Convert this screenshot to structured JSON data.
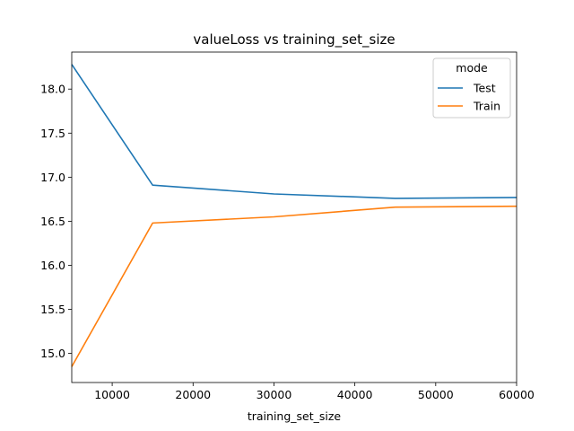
{
  "chart_data": {
    "type": "line",
    "title": "valueLoss vs training_set_size",
    "xlabel": "training_set_size",
    "ylabel": "",
    "xlim": [
      5000,
      60000
    ],
    "ylim": [
      14.67,
      18.42
    ],
    "x_ticks": [
      10000,
      20000,
      30000,
      40000,
      50000,
      60000
    ],
    "y_ticks": [
      15.0,
      15.5,
      16.0,
      16.5,
      17.0,
      17.5,
      18.0
    ],
    "x_tick_labels": [
      "10000",
      "20000",
      "30000",
      "40000",
      "50000",
      "60000"
    ],
    "y_tick_labels": [
      "15.0",
      "15.5",
      "16.0",
      "16.5",
      "17.0",
      "17.5",
      "18.0"
    ],
    "grid": false,
    "legend": {
      "title": "mode",
      "placement": "top-right"
    },
    "x": [
      5000,
      15000,
      30000,
      45000,
      60000
    ],
    "series": [
      {
        "name": "Test",
        "color": "#1f77b4",
        "values": [
          18.28,
          16.91,
          16.81,
          16.76,
          16.77
        ]
      },
      {
        "name": "Train",
        "color": "#ff7f0e",
        "values": [
          14.85,
          16.48,
          16.55,
          16.66,
          16.67
        ]
      }
    ]
  }
}
